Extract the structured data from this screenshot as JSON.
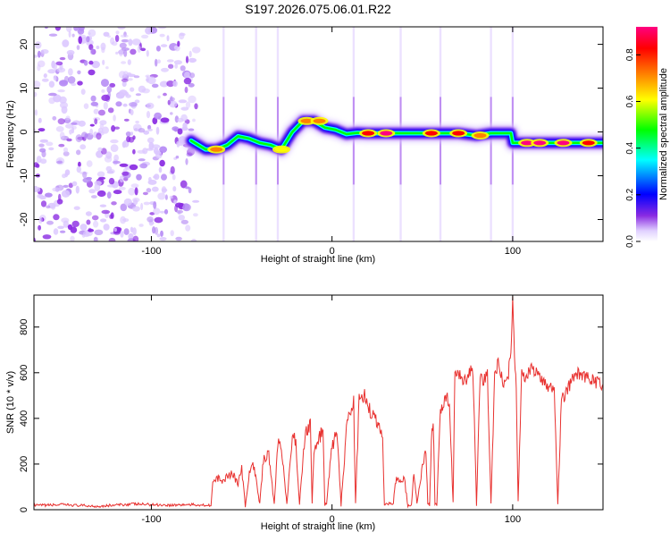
{
  "chart_data": [
    {
      "type": "heatmap",
      "title": "S197.2026.075.06.01.R22",
      "xlabel": "Height of straight line (km)",
      "ylabel": "Frequency (Hz)",
      "xlim": [
        -165,
        150
      ],
      "ylim": [
        -25,
        24
      ],
      "x_ticks": [
        -100,
        0,
        100
      ],
      "y_ticks": [
        -20,
        -10,
        0,
        10,
        20
      ],
      "colorbar": {
        "label": "Normalized spectral amplitude",
        "range": [
          0,
          0.92
        ],
        "ticks": [
          0.0,
          0.2,
          0.4,
          0.6,
          0.8
        ],
        "stops": [
          "#ffffff",
          "#e0d0ff",
          "#8a2be2",
          "#0000ff",
          "#00ffff",
          "#00ff00",
          "#ffff00",
          "#ff8000",
          "#ff0000",
          "#ff0080"
        ]
      },
      "noise_region_x": [
        -165,
        -75
      ],
      "track": {
        "x": [
          -78,
          -70,
          -64,
          -58,
          -52,
          -46,
          -40,
          -34,
          -28,
          -22,
          -16,
          -10,
          -4,
          2,
          8,
          14,
          20,
          30,
          40,
          50,
          60,
          70,
          80,
          88,
          96,
          99,
          100,
          110,
          120,
          130,
          140,
          150
        ],
        "freq": [
          -2,
          -4,
          -4,
          -3,
          -1,
          -1.5,
          -2.5,
          -3,
          -4,
          0,
          2.5,
          2.5,
          1,
          0.5,
          -0.5,
          -0.2,
          -0.3,
          -0.3,
          -0.3,
          -0.3,
          -0.3,
          -0.3,
          -0.8,
          -0.3,
          -0.3,
          -0.3,
          -2.5,
          -2.5,
          -2.5,
          -2.5,
          -2.5,
          -2.5
        ]
      },
      "hotspots": [
        {
          "x": -64,
          "freq": -4,
          "amp": 0.7
        },
        {
          "x": -28,
          "freq": -4,
          "amp": 0.6
        },
        {
          "x": -14,
          "freq": 2.5,
          "amp": 0.75
        },
        {
          "x": -7,
          "freq": 2.5,
          "amp": 0.75
        },
        {
          "x": 20,
          "freq": -0.3,
          "amp": 0.85
        },
        {
          "x": 30,
          "freq": -0.3,
          "amp": 0.9
        },
        {
          "x": 55,
          "freq": -0.3,
          "amp": 0.85
        },
        {
          "x": 70,
          "freq": -0.3,
          "amp": 0.85
        },
        {
          "x": 82,
          "freq": -0.8,
          "amp": 0.75
        },
        {
          "x": 108,
          "freq": -2.5,
          "amp": 0.92
        },
        {
          "x": 115,
          "freq": -2.5,
          "amp": 0.92
        },
        {
          "x": 128,
          "freq": -2.5,
          "amp": 0.92
        },
        {
          "x": 142,
          "freq": -2.5,
          "amp": 0.8
        }
      ],
      "vertical_streaks_x": [
        -60,
        -42,
        -30,
        12,
        38,
        60,
        88,
        100
      ]
    },
    {
      "type": "line",
      "xlabel": "Height of straight line (km)",
      "ylabel": "SNR (10 * v/v)",
      "xlim": [
        -165,
        150
      ],
      "ylim": [
        0,
        940
      ],
      "x_ticks": [
        -100,
        0,
        100
      ],
      "y_ticks": [
        0,
        200,
        400,
        600,
        800
      ],
      "series": [
        {
          "name": "SNR",
          "color": "#e8312f",
          "x": [
            -165,
            -150,
            -130,
            -110,
            -90,
            -80,
            -67,
            -66,
            -62,
            -60,
            -58,
            -55,
            -52,
            -50,
            -48,
            -45,
            -43,
            -40,
            -38,
            -35,
            -32,
            -30,
            -28,
            -25,
            -22,
            -20,
            -18,
            -15,
            -12,
            -11,
            -10,
            -8,
            -5,
            -4,
            -3,
            0,
            2,
            3,
            5,
            8,
            10,
            12,
            13,
            15,
            18,
            20,
            22,
            25,
            28,
            29,
            30,
            34,
            35,
            36,
            37,
            40,
            42,
            44,
            45,
            46,
            47,
            50,
            52,
            53,
            54,
            55,
            56,
            57,
            58,
            60,
            63,
            65,
            67,
            68,
            70,
            72,
            74,
            76,
            78,
            80,
            82,
            84,
            86,
            88,
            90,
            92,
            95,
            97,
            98,
            99,
            100,
            101,
            102,
            103,
            105,
            108,
            110,
            115,
            118,
            120,
            123,
            125,
            127,
            130,
            135,
            140,
            145,
            150
          ],
          "y": [
            18,
            22,
            15,
            25,
            20,
            22,
            20,
            120,
            140,
            120,
            150,
            160,
            110,
            180,
            15,
            200,
            180,
            25,
            220,
            250,
            20,
            300,
            280,
            20,
            320,
            300,
            20,
            330,
            380,
            30,
            250,
            300,
            350,
            20,
            30,
            280,
            320,
            300,
            20,
            350,
            430,
            470,
            25,
            480,
            500,
            450,
            420,
            380,
            330,
            20,
            25,
            30,
            120,
            140,
            125,
            135,
            15,
            20,
            150,
            120,
            25,
            180,
            250,
            30,
            20,
            300,
            380,
            25,
            20,
            440,
            500,
            460,
            30,
            580,
            600,
            580,
            560,
            600,
            610,
            20,
            580,
            560,
            600,
            25,
            580,
            650,
            540,
            560,
            620,
            660,
            940,
            700,
            520,
            40,
            600,
            580,
            620,
            580,
            560,
            540,
            520,
            30,
            480,
            520,
            600,
            580,
            560,
            550
          ]
        }
      ]
    }
  ]
}
